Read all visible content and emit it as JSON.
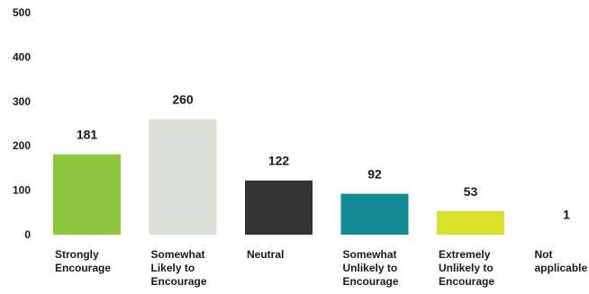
{
  "chart_data": {
    "type": "bar",
    "title": "",
    "xlabel": "",
    "ylabel": "",
    "ylim": [
      0,
      500
    ],
    "yticks": [
      0,
      100,
      200,
      300,
      400,
      500
    ],
    "grid": false,
    "legend": "none",
    "categories": [
      [
        "Strongly",
        "Encourage"
      ],
      [
        "Somewhat",
        "Likely to",
        "Encourage"
      ],
      [
        "Neutral"
      ],
      [
        "Somewhat",
        "Unlikely to",
        "Encourage"
      ],
      [
        "Extremely",
        "Unlikely to",
        "Encourage"
      ],
      [
        "Not",
        "applicable"
      ]
    ],
    "values": [
      181,
      260,
      122,
      92,
      53,
      1
    ],
    "colors": [
      "#8dc63f",
      "#dcdfd6",
      "#333333",
      "#138a94",
      "#d7e229",
      "#ffffff"
    ]
  }
}
